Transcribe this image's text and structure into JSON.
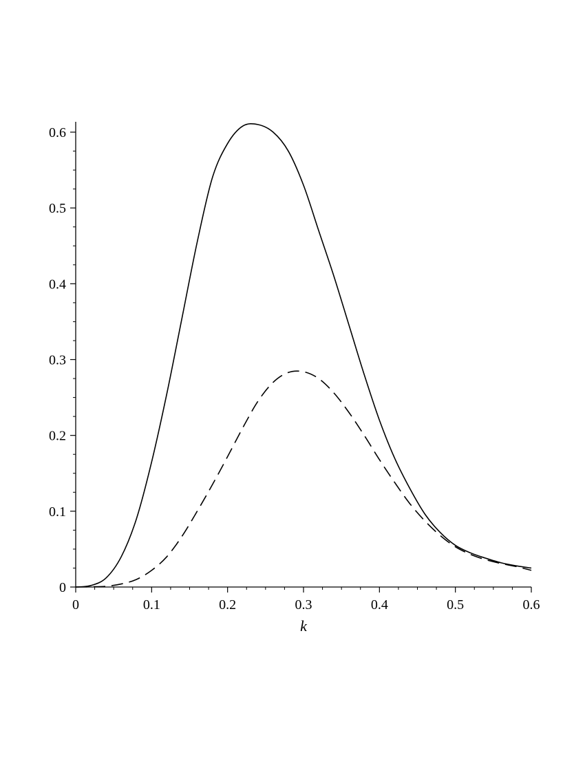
{
  "chart_data": {
    "type": "line",
    "title": "",
    "xlabel": "k",
    "ylabel": "",
    "xlim": [
      0,
      0.6
    ],
    "ylim": [
      0,
      0.61
    ],
    "grid": false,
    "legend": "none",
    "x_ticks": [
      0,
      0.1,
      0.2,
      0.3,
      0.4,
      0.5,
      0.6
    ],
    "x_tick_labels": [
      "0",
      "0.1",
      "0.2",
      "0.3",
      "0.4",
      "0.5",
      "0.6"
    ],
    "y_ticks": [
      0,
      0.1,
      0.2,
      0.3,
      0.4,
      0.5,
      0.6
    ],
    "y_tick_labels": [
      "0",
      "0.1",
      "0.2",
      "0.3",
      "0.4",
      "0.5",
      "0.6"
    ],
    "series": [
      {
        "style": "solid",
        "color": "#000000",
        "x": [
          0,
          0.02,
          0.04,
          0.06,
          0.08,
          0.1,
          0.12,
          0.14,
          0.16,
          0.18,
          0.2,
          0.22,
          0.24,
          0.26,
          0.28,
          0.3,
          0.32,
          0.34,
          0.36,
          0.38,
          0.4,
          0.42,
          0.44,
          0.46,
          0.48,
          0.5,
          0.52,
          0.54,
          0.56,
          0.58,
          0.6
        ],
        "y": [
          0,
          0.002,
          0.012,
          0.04,
          0.09,
          0.165,
          0.255,
          0.355,
          0.455,
          0.54,
          0.585,
          0.608,
          0.61,
          0.6,
          0.575,
          0.53,
          0.47,
          0.41,
          0.345,
          0.28,
          0.22,
          0.17,
          0.13,
          0.096,
          0.072,
          0.055,
          0.045,
          0.038,
          0.032,
          0.028,
          0.025
        ]
      },
      {
        "style": "dashed",
        "color": "#000000",
        "x": [
          0,
          0.02,
          0.04,
          0.06,
          0.08,
          0.1,
          0.12,
          0.14,
          0.16,
          0.18,
          0.2,
          0.22,
          0.24,
          0.26,
          0.28,
          0.3,
          0.32,
          0.34,
          0.36,
          0.38,
          0.4,
          0.42,
          0.44,
          0.46,
          0.48,
          0.5,
          0.52,
          0.54,
          0.56,
          0.58,
          0.6
        ],
        "y": [
          0,
          0.0003,
          0.001,
          0.004,
          0.01,
          0.022,
          0.04,
          0.067,
          0.1,
          0.135,
          0.172,
          0.21,
          0.245,
          0.27,
          0.283,
          0.284,
          0.275,
          0.256,
          0.23,
          0.2,
          0.168,
          0.138,
          0.11,
          0.087,
          0.068,
          0.053,
          0.043,
          0.036,
          0.031,
          0.027,
          0.022
        ]
      }
    ]
  }
}
